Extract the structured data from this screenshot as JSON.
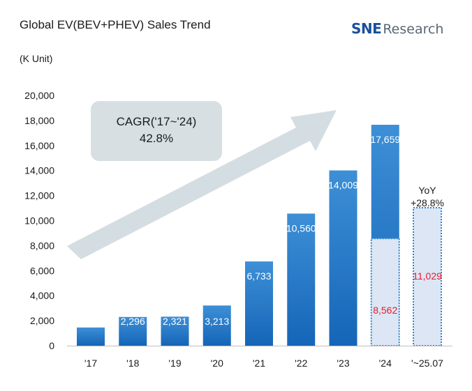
{
  "header": {
    "title": "Global EV(BEV+PHEV) Sales Trend",
    "unit": "(K Unit)",
    "logo_mark": "SNE",
    "logo_text": "Research"
  },
  "colors": {
    "bar_top": "#3d8fd6",
    "bar_bottom": "#1565b8",
    "partial_fill": "#dde6f5",
    "partial_border": "#2f86cc",
    "partial_label": "#e8192c",
    "bar_label": "#ffffff",
    "arrow": "#cdd7dd",
    "callout_bg": "#d7dfe3"
  },
  "callout": {
    "line1": "CAGR('17~'24)",
    "line2": "42.8%"
  },
  "yoy": {
    "line1": "YoY",
    "line2": "+28.8%"
  },
  "chart_data": {
    "type": "bar",
    "categories": [
      "'17",
      "'18",
      "'19",
      "'20",
      "'21",
      "'22",
      "'23",
      "'24",
      "'~25.07"
    ],
    "values": [
      1455,
      2296,
      2321,
      3213,
      6733,
      10560,
      14009,
      17659,
      11029
    ],
    "value_labels": [
      "1,455",
      "2,296",
      "2,321",
      "3,213",
      "6,733",
      "10,560",
      "14,009",
      "17,659",
      "11,029"
    ],
    "partial_2024": {
      "category": "'24",
      "value": 8562,
      "label": "8,562"
    },
    "ylim": [
      0,
      20000
    ],
    "yticks": [
      0,
      2000,
      4000,
      6000,
      8000,
      10000,
      12000,
      14000,
      16000,
      18000,
      20000
    ],
    "ytick_labels": [
      "0",
      "2,000",
      "4,000",
      "6,000",
      "8,000",
      "10,000",
      "12,000",
      "14,000",
      "16,000",
      "18,000",
      "20,000"
    ],
    "grid": false,
    "legend": "none"
  }
}
